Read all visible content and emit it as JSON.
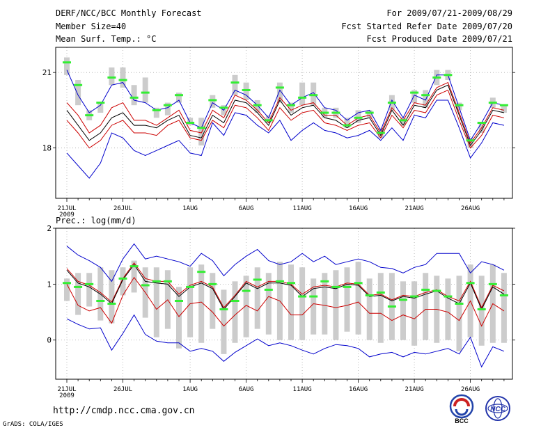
{
  "header": {
    "title": "DERF/NCC/BCC Monthly Forecast",
    "member_size": "Member Size=40",
    "variable": "Mean Surf. Temp.: °C",
    "forecast_period": "For 2009/07/21-2009/08/29",
    "started_date": "Fcst Started Refer Date 2009/07/20",
    "produced_date": "Fcst Produced Date 2009/07/21"
  },
  "footer": {
    "url": "http://cmdp.ncc.cma.gov.cn",
    "credit": "GrADS: COLA/IGES",
    "logo_left_text": "BCC",
    "logo_right_text": "NCC"
  },
  "colors": {
    "outer": "#0000cc",
    "inner": "#cc0000",
    "mean": "#000000",
    "box": "#cccccc",
    "marker": "#33ee33"
  },
  "chart_data": [
    {
      "type": "line",
      "title": "Mean Surf. Temp.: °C",
      "ylabel": "",
      "ylim": [
        16,
        22
      ],
      "yticks": [
        18,
        21
      ],
      "xlabel": "",
      "day_count": 40,
      "xticks": [
        {
          "day": 0,
          "label": "21JUL",
          "sub": "2009"
        },
        {
          "day": 5,
          "label": "26JUL"
        },
        {
          "day": 11,
          "label": "1AUG"
        },
        {
          "day": 16,
          "label": "6AUG"
        },
        {
          "day": 21,
          "label": "11AUG"
        },
        {
          "day": 26,
          "label": "16AUG"
        },
        {
          "day": 31,
          "label": "21AUG"
        },
        {
          "day": 36,
          "label": "26AUG"
        }
      ],
      "series": [
        {
          "name": "max",
          "color": "#0000cc",
          "values": [
            21.1,
            20.1,
            19.4,
            19.7,
            20.5,
            20.6,
            19.9,
            19.8,
            19.5,
            19.6,
            19.9,
            19.0,
            18.8,
            19.8,
            19.5,
            20.3,
            20.1,
            19.7,
            19.2,
            20.3,
            19.7,
            20.0,
            20.2,
            19.6,
            19.5,
            19.1,
            19.4,
            19.5,
            18.7,
            19.9,
            19.2,
            20.1,
            19.9,
            20.9,
            20.9,
            19.6,
            18.3,
            19.0,
            19.8,
            19.7
          ]
        },
        {
          "name": "upper",
          "color": "#cc0000",
          "values": [
            19.8,
            19.3,
            18.6,
            18.9,
            19.6,
            19.8,
            19.1,
            19.1,
            18.9,
            19.2,
            19.5,
            18.7,
            18.6,
            19.5,
            19.2,
            20.1,
            19.9,
            19.5,
            19.0,
            20.0,
            19.5,
            19.7,
            19.8,
            19.3,
            19.3,
            18.9,
            19.2,
            19.3,
            18.6,
            19.6,
            19.1,
            19.8,
            19.7,
            20.4,
            20.6,
            19.4,
            18.2,
            18.8,
            19.6,
            19.5
          ]
        },
        {
          "name": "mean",
          "color": "#000000",
          "values": [
            19.5,
            18.9,
            18.3,
            18.6,
            19.2,
            19.4,
            18.9,
            18.9,
            18.8,
            19.1,
            19.3,
            18.5,
            18.4,
            19.3,
            19.0,
            19.9,
            19.8,
            19.4,
            18.9,
            19.9,
            19.3,
            19.6,
            19.7,
            19.2,
            19.1,
            18.8,
            19.1,
            19.2,
            18.5,
            19.5,
            18.9,
            19.7,
            19.6,
            20.3,
            20.5,
            19.3,
            18.1,
            18.7,
            19.5,
            19.4
          ]
        },
        {
          "name": "lower",
          "color": "#cc0000",
          "values": [
            19.1,
            18.6,
            18.0,
            18.3,
            18.9,
            19.1,
            18.6,
            18.6,
            18.5,
            18.9,
            19.1,
            18.4,
            18.3,
            19.1,
            18.8,
            19.7,
            19.6,
            19.2,
            18.7,
            19.6,
            19.1,
            19.4,
            19.5,
            19.0,
            18.9,
            18.7,
            18.9,
            19.0,
            18.4,
            19.3,
            18.8,
            19.5,
            19.4,
            20.1,
            20.3,
            19.1,
            18.0,
            18.5,
            19.3,
            19.2
          ]
        },
        {
          "name": "min",
          "color": "#0000cc",
          "values": [
            17.8,
            17.3,
            16.8,
            17.4,
            18.6,
            18.4,
            17.9,
            17.7,
            17.9,
            18.1,
            18.3,
            17.8,
            17.7,
            19.0,
            18.5,
            19.4,
            19.3,
            18.9,
            18.6,
            19.1,
            18.3,
            18.7,
            19.0,
            18.7,
            18.6,
            18.4,
            18.5,
            18.7,
            18.3,
            18.8,
            18.3,
            19.3,
            19.2,
            19.9,
            19.9,
            18.8,
            17.6,
            18.2,
            19.0,
            18.9
          ]
        }
      ],
      "boxes": [
        {
          "lo": 20.9,
          "hi": 21.6
        },
        {
          "lo": 19.7,
          "hi": 20.7
        },
        {
          "lo": 19.1,
          "hi": 19.5
        },
        {
          "lo": 19.4,
          "hi": 19.8
        },
        {
          "lo": 20.5,
          "hi": 21.2
        },
        {
          "lo": 20.4,
          "hi": 21.2
        },
        {
          "lo": 19.7,
          "hi": 20.5
        },
        {
          "lo": 19.8,
          "hi": 20.8
        },
        {
          "lo": 19.2,
          "hi": 19.6
        },
        {
          "lo": 19.3,
          "hi": 19.8
        },
        {
          "lo": 19.8,
          "hi": 20.2
        },
        {
          "lo": 18.9,
          "hi": 19.2
        },
        {
          "lo": 18.1,
          "hi": 19.2
        },
        {
          "lo": 19.6,
          "hi": 20.1
        },
        {
          "lo": 19.3,
          "hi": 19.7
        },
        {
          "lo": 20.1,
          "hi": 20.9
        },
        {
          "lo": 19.9,
          "hi": 20.6
        },
        {
          "lo": 19.4,
          "hi": 19.9
        },
        {
          "lo": 19.0,
          "hi": 19.3
        },
        {
          "lo": 19.8,
          "hi": 20.6
        },
        {
          "lo": 19.4,
          "hi": 19.8
        },
        {
          "lo": 19.7,
          "hi": 20.6
        },
        {
          "lo": 19.7,
          "hi": 20.6
        },
        {
          "lo": 19.2,
          "hi": 19.6
        },
        {
          "lo": 19.2,
          "hi": 19.6
        },
        {
          "lo": 18.8,
          "hi": 19.2
        },
        {
          "lo": 19.0,
          "hi": 19.5
        },
        {
          "lo": 19.2,
          "hi": 19.5
        },
        {
          "lo": 18.4,
          "hi": 18.8
        },
        {
          "lo": 19.5,
          "hi": 20.1
        },
        {
          "lo": 18.9,
          "hi": 19.2
        },
        {
          "lo": 19.8,
          "hi": 20.3
        },
        {
          "lo": 19.6,
          "hi": 20.3
        },
        {
          "lo": 20.5,
          "hi": 21.1
        },
        {
          "lo": 20.7,
          "hi": 21.1
        },
        {
          "lo": 19.5,
          "hi": 19.8
        },
        {
          "lo": 18.0,
          "hi": 18.4
        },
        {
          "lo": 18.6,
          "hi": 19.0
        },
        {
          "lo": 19.6,
          "hi": 20.0
        },
        {
          "lo": 19.4,
          "hi": 19.7
        }
      ],
      "markers": [
        21.4,
        20.5,
        19.3,
        19.8,
        20.8,
        20.7,
        20.0,
        20.2,
        19.5,
        19.7,
        20.1,
        19.0,
        18.8,
        19.9,
        19.6,
        20.6,
        20.3,
        19.7,
        19.1,
        20.4,
        19.7,
        20.0,
        20.1,
        19.4,
        19.4,
        18.9,
        19.2,
        19.4,
        18.6,
        19.8,
        19.1,
        20.2,
        20.1,
        20.8,
        20.9,
        19.7,
        18.3,
        19.0,
        19.8,
        19.7
      ]
    },
    {
      "type": "line",
      "title": "Prec.: log(mm/d)",
      "ylabel": "",
      "ylim": [
        -0.7,
        2
      ],
      "yticks": [
        0,
        1,
        2
      ],
      "xlabel": "",
      "day_count": 40,
      "xticks": [
        {
          "day": 0,
          "label": "21JUL",
          "sub": "2009"
        },
        {
          "day": 5,
          "label": "26JUL"
        },
        {
          "day": 11,
          "label": "1AUG"
        },
        {
          "day": 16,
          "label": "6AUG"
        },
        {
          "day": 21,
          "label": "11AUG"
        },
        {
          "day": 26,
          "label": "16AUG"
        },
        {
          "day": 31,
          "label": "21AUG"
        },
        {
          "day": 36,
          "label": "26AUG"
        }
      ],
      "series": [
        {
          "name": "max",
          "color": "#0000cc",
          "values": [
            1.68,
            1.52,
            1.42,
            1.3,
            1.05,
            1.45,
            1.72,
            1.45,
            1.5,
            1.45,
            1.4,
            1.32,
            1.55,
            1.42,
            1.15,
            1.35,
            1.5,
            1.62,
            1.42,
            1.35,
            1.4,
            1.55,
            1.4,
            1.5,
            1.35,
            1.4,
            1.45,
            1.4,
            1.3,
            1.28,
            1.2,
            1.3,
            1.35,
            1.55,
            1.55,
            1.55,
            1.2,
            1.4,
            1.35,
            1.25
          ]
        },
        {
          "name": "upper",
          "color": "#cc0000",
          "values": [
            1.28,
            1.05,
            0.98,
            0.85,
            0.68,
            1.1,
            1.38,
            1.1,
            1.05,
            1.05,
            0.82,
            0.98,
            1.05,
            0.95,
            0.58,
            0.8,
            1.05,
            0.95,
            1.05,
            1.05,
            1.0,
            0.82,
            0.95,
            0.98,
            0.95,
            1.02,
            1.0,
            0.8,
            0.82,
            0.72,
            0.8,
            0.78,
            0.85,
            0.9,
            0.78,
            0.7,
            1.05,
            0.58,
            0.98,
            0.88
          ]
        },
        {
          "name": "mean",
          "color": "#000000",
          "values": [
            1.25,
            1.02,
            0.95,
            0.82,
            0.65,
            1.08,
            1.35,
            1.05,
            1.02,
            1.0,
            0.78,
            0.95,
            1.02,
            0.92,
            0.55,
            0.78,
            1.02,
            0.92,
            1.02,
            1.02,
            0.98,
            0.78,
            0.92,
            0.95,
            0.92,
            1.0,
            0.98,
            0.78,
            0.8,
            0.7,
            0.78,
            0.75,
            0.82,
            0.88,
            0.75,
            0.65,
            1.02,
            0.55,
            0.95,
            0.82
          ]
        },
        {
          "name": "lower",
          "color": "#cc0000",
          "values": [
            1.0,
            0.62,
            0.52,
            0.58,
            0.3,
            0.8,
            1.12,
            0.85,
            0.55,
            0.72,
            0.42,
            0.65,
            0.68,
            0.5,
            0.25,
            0.45,
            0.62,
            0.52,
            0.78,
            0.7,
            0.45,
            0.45,
            0.65,
            0.62,
            0.58,
            0.62,
            0.68,
            0.48,
            0.48,
            0.35,
            0.45,
            0.38,
            0.55,
            0.55,
            0.5,
            0.35,
            0.7,
            0.25,
            0.65,
            0.52
          ]
        },
        {
          "name": "min",
          "color": "#0000cc",
          "values": [
            0.38,
            0.28,
            0.2,
            0.22,
            -0.18,
            0.12,
            0.45,
            0.1,
            -0.02,
            -0.05,
            -0.05,
            -0.2,
            -0.15,
            -0.2,
            -0.38,
            -0.22,
            -0.1,
            0.02,
            -0.1,
            -0.05,
            -0.1,
            -0.18,
            -0.25,
            -0.15,
            -0.08,
            -0.1,
            -0.15,
            -0.3,
            -0.25,
            -0.22,
            -0.3,
            -0.22,
            -0.25,
            -0.2,
            -0.15,
            -0.25,
            0.05,
            -0.48,
            -0.12,
            -0.2
          ]
        }
      ],
      "boxes": [
        {
          "lo": 0.7,
          "hi": 1.1
        },
        {
          "lo": 0.45,
          "hi": 1.2
        },
        {
          "lo": 0.6,
          "hi": 1.2
        },
        {
          "lo": 0.35,
          "hi": 1.3
        },
        {
          "lo": 0.3,
          "hi": 1.25
        },
        {
          "lo": 0.8,
          "hi": 1.3
        },
        {
          "lo": 0.85,
          "hi": 1.42
        },
        {
          "lo": 0.4,
          "hi": 1.3
        },
        {
          "lo": 0.05,
          "hi": 1.3
        },
        {
          "lo": 0.2,
          "hi": 1.25
        },
        {
          "lo": -0.15,
          "hi": 0.95
        },
        {
          "lo": 0.05,
          "hi": 1.3
        },
        {
          "lo": -0.05,
          "hi": 1.35
        },
        {
          "lo": 0.2,
          "hi": 1.2
        },
        {
          "lo": -0.25,
          "hi": 0.9
        },
        {
          "lo": -0.05,
          "hi": 1.05
        },
        {
          "lo": 0.05,
          "hi": 1.15
        },
        {
          "lo": 0.2,
          "hi": 1.3
        },
        {
          "lo": 0.1,
          "hi": 1.2
        },
        {
          "lo": 0.0,
          "hi": 1.4
        },
        {
          "lo": 0.0,
          "hi": 1.35
        },
        {
          "lo": 0.0,
          "hi": 1.3
        },
        {
          "lo": 0.1,
          "hi": 1.1
        },
        {
          "lo": 0.1,
          "hi": 1.2
        },
        {
          "lo": 0.0,
          "hi": 1.25
        },
        {
          "lo": 0.15,
          "hi": 1.3
        },
        {
          "lo": 0.1,
          "hi": 1.4
        },
        {
          "lo": 0.0,
          "hi": 1.1
        },
        {
          "lo": -0.05,
          "hi": 1.2
        },
        {
          "lo": 0.0,
          "hi": 1.2
        },
        {
          "lo": 0.0,
          "hi": 1.05
        },
        {
          "lo": -0.1,
          "hi": 1.05
        },
        {
          "lo": 0.0,
          "hi": 1.2
        },
        {
          "lo": -0.05,
          "hi": 1.15
        },
        {
          "lo": 0.0,
          "hi": 1.1
        },
        {
          "lo": -0.2,
          "hi": 1.15
        },
        {
          "lo": 0.05,
          "hi": 1.35
        },
        {
          "lo": -0.1,
          "hi": 1.15
        },
        {
          "lo": -0.05,
          "hi": 1.35
        },
        {
          "lo": -0.05,
          "hi": 1.2
        }
      ],
      "markers": [
        1.02,
        0.95,
        1.0,
        0.7,
        0.65,
        1.1,
        1.32,
        0.98,
        1.05,
        1.05,
        0.7,
        0.95,
        1.22,
        1.0,
        0.55,
        0.7,
        0.88,
        1.08,
        0.9,
        1.05,
        1.02,
        0.78,
        0.78,
        1.05,
        0.95,
        0.95,
        1.02,
        0.8,
        0.85,
        0.6,
        0.72,
        0.78,
        0.9,
        0.88,
        0.78,
        0.65,
        1.02,
        0.55,
        1.0,
        0.8
      ]
    }
  ]
}
